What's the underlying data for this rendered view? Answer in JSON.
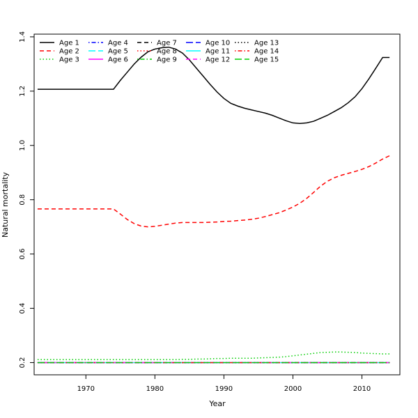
{
  "chart_data": {
    "type": "line",
    "title": "",
    "xlabel": "Year",
    "ylabel": "Natural mortality",
    "xlim": [
      1962.5,
      2015.5
    ],
    "ylim": [
      0.155,
      1.41
    ],
    "xticks": [
      1970,
      1980,
      1990,
      2000,
      2010
    ],
    "yticks": [
      0.2,
      0.4,
      0.6,
      0.8,
      1.0,
      1.2,
      1.4
    ],
    "ytick_labels": [
      "0.2",
      "0.4",
      "0.6",
      "0.8",
      "1.0",
      "1.2",
      "1.4"
    ],
    "legend_position": "top-left",
    "x": [
      1963,
      1964,
      1965,
      1966,
      1967,
      1968,
      1969,
      1970,
      1971,
      1972,
      1973,
      1974,
      1975,
      1976,
      1977,
      1978,
      1979,
      1980,
      1981,
      1982,
      1983,
      1984,
      1985,
      1986,
      1987,
      1988,
      1989,
      1990,
      1991,
      1992,
      1993,
      1994,
      1995,
      1996,
      1997,
      1998,
      1999,
      2000,
      2001,
      2002,
      2003,
      2004,
      2005,
      2006,
      2007,
      2008,
      2009,
      2010,
      2011,
      2012,
      2013,
      2014
    ],
    "series": [
      {
        "name": "Age 1",
        "color": "#000000",
        "dash": "solid",
        "values": [
          1.207,
          1.207,
          1.207,
          1.207,
          1.207,
          1.207,
          1.207,
          1.207,
          1.207,
          1.207,
          1.207,
          1.207,
          1.24,
          1.27,
          1.3,
          1.325,
          1.345,
          1.355,
          1.36,
          1.362,
          1.355,
          1.34,
          1.315,
          1.285,
          1.255,
          1.225,
          1.197,
          1.173,
          1.155,
          1.145,
          1.137,
          1.131,
          1.125,
          1.119,
          1.111,
          1.101,
          1.091,
          1.083,
          1.081,
          1.083,
          1.089,
          1.1,
          1.111,
          1.125,
          1.139,
          1.157,
          1.179,
          1.209,
          1.245,
          1.284,
          1.324,
          1.324
        ]
      },
      {
        "name": "Age 2",
        "color": "#ff0000",
        "dash": "dashed",
        "values": [
          0.766,
          0.766,
          0.766,
          0.766,
          0.766,
          0.766,
          0.766,
          0.766,
          0.766,
          0.766,
          0.766,
          0.766,
          0.747,
          0.727,
          0.712,
          0.703,
          0.7,
          0.702,
          0.706,
          0.71,
          0.714,
          0.716,
          0.716,
          0.716,
          0.716,
          0.717,
          0.718,
          0.72,
          0.721,
          0.723,
          0.725,
          0.728,
          0.732,
          0.738,
          0.745,
          0.752,
          0.762,
          0.773,
          0.787,
          0.805,
          0.827,
          0.85,
          0.868,
          0.881,
          0.89,
          0.897,
          0.904,
          0.912,
          0.922,
          0.935,
          0.95,
          0.962
        ]
      },
      {
        "name": "Age 3",
        "color": "#00cd00",
        "dash": "dotted",
        "values": [
          0.211,
          0.211,
          0.211,
          0.211,
          0.211,
          0.211,
          0.211,
          0.211,
          0.211,
          0.211,
          0.211,
          0.211,
          0.211,
          0.211,
          0.211,
          0.211,
          0.211,
          0.211,
          0.211,
          0.211,
          0.211,
          0.212,
          0.212,
          0.213,
          0.213,
          0.214,
          0.215,
          0.215,
          0.216,
          0.216,
          0.216,
          0.216,
          0.217,
          0.218,
          0.219,
          0.22,
          0.222,
          0.225,
          0.228,
          0.231,
          0.234,
          0.237,
          0.238,
          0.239,
          0.239,
          0.238,
          0.237,
          0.235,
          0.234,
          0.233,
          0.232,
          0.232
        ]
      },
      {
        "name": "Age 4",
        "color": "#0000ff",
        "dash": "dotdash",
        "value": 0.2
      },
      {
        "name": "Age 5",
        "color": "#00ffff",
        "dash": "longdash",
        "value": 0.2
      },
      {
        "name": "Age 6",
        "color": "#ff00ff",
        "dash": "solid",
        "value": 0.2
      },
      {
        "name": "Age 7",
        "color": "#000000",
        "dash": "dashed",
        "value": 0.2
      },
      {
        "name": "Age 8",
        "color": "#ff0000",
        "dash": "dotted",
        "value": 0.2
      },
      {
        "name": "Age 9",
        "color": "#00cd00",
        "dash": "dotdash",
        "value": 0.2
      },
      {
        "name": "Age 10",
        "color": "#0000ff",
        "dash": "longdash",
        "value": 0.2
      },
      {
        "name": "Age 11",
        "color": "#00ffff",
        "dash": "solid",
        "value": 0.2
      },
      {
        "name": "Age 12",
        "color": "#ff00ff",
        "dash": "dashed",
        "value": 0.2
      },
      {
        "name": "Age 13",
        "color": "#000000",
        "dash": "dotted",
        "value": 0.2
      },
      {
        "name": "Age 14",
        "color": "#ff0000",
        "dash": "dotdash",
        "value": 0.2
      },
      {
        "name": "Age 15",
        "color": "#00cd00",
        "dash": "longdash",
        "value": 0.2
      }
    ]
  }
}
